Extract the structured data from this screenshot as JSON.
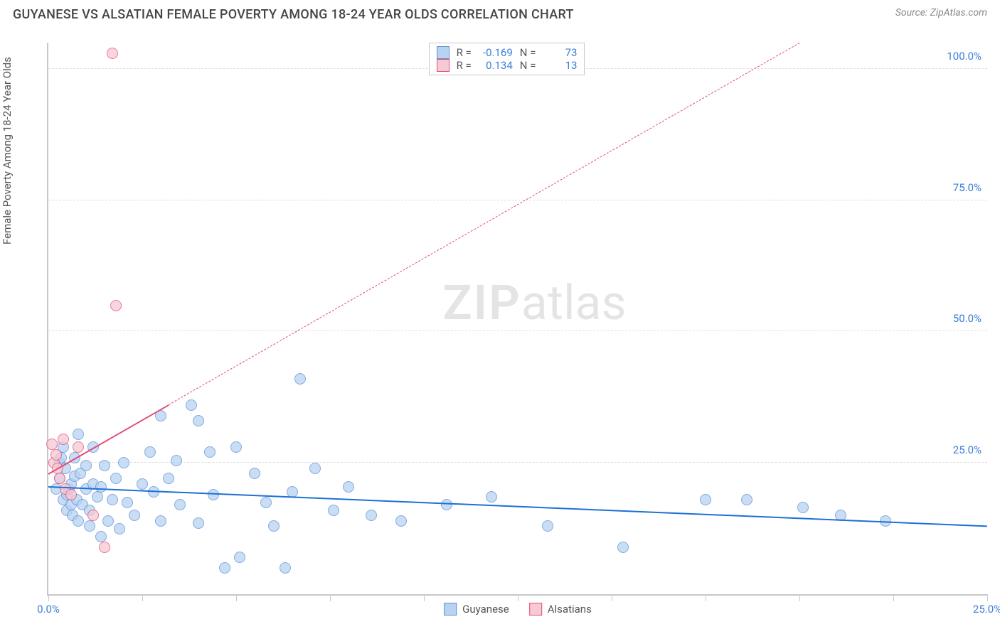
{
  "title": "GUYANESE VS ALSATIAN FEMALE POVERTY AMONG 18-24 YEAR OLDS CORRELATION CHART",
  "source_label": "Source: ZipAtlas.com",
  "yaxis_title": "Female Poverty Among 18-24 Year Olds",
  "watermark_zip": "ZIP",
  "watermark_rest": "atlas",
  "chart": {
    "type": "scatter",
    "xlim": [
      0,
      25
    ],
    "ylim": [
      0,
      105
    ],
    "xticks": [
      0,
      2.5,
      5,
      7.5,
      10,
      12.5,
      15,
      17.5,
      20,
      22.5,
      25
    ],
    "xtick_labels_shown": {
      "0": "0.0%",
      "25": "25.0%"
    },
    "yticks": [
      25,
      50,
      75,
      100
    ],
    "ytick_labels": {
      "25": "25.0%",
      "50": "50.0%",
      "75": "75.0%",
      "100": "100.0%"
    },
    "grid_color": "#dcdcdc",
    "axis_color": "#c8c8c8",
    "background_color": "#ffffff",
    "series": [
      {
        "name": "Guyanese",
        "marker_fill": "#b8d2f2",
        "marker_stroke": "#5b8fd6",
        "marker_opacity": 0.75,
        "marker_radius": 8,
        "reg_color": "#1f6fd4",
        "reg_from": [
          0,
          20.5
        ],
        "reg_to": [
          25,
          13
        ],
        "reg_dash_after_x": null,
        "R": "-0.169",
        "N": "73",
        "points": [
          [
            0.2,
            20
          ],
          [
            0.3,
            25
          ],
          [
            0.3,
            22
          ],
          [
            0.35,
            26
          ],
          [
            0.4,
            28
          ],
          [
            0.4,
            18
          ],
          [
            0.45,
            24
          ],
          [
            0.5,
            19
          ],
          [
            0.5,
            16
          ],
          [
            0.55,
            20
          ],
          [
            0.6,
            17
          ],
          [
            0.6,
            21
          ],
          [
            0.65,
            15
          ],
          [
            0.7,
            22.5
          ],
          [
            0.7,
            26
          ],
          [
            0.75,
            18
          ],
          [
            0.8,
            30.5
          ],
          [
            0.8,
            14
          ],
          [
            0.85,
            23
          ],
          [
            0.9,
            17
          ],
          [
            1.0,
            20
          ],
          [
            1.0,
            24.5
          ],
          [
            1.1,
            16
          ],
          [
            1.1,
            13
          ],
          [
            1.2,
            21
          ],
          [
            1.2,
            28
          ],
          [
            1.3,
            18.5
          ],
          [
            1.4,
            11
          ],
          [
            1.4,
            20.5
          ],
          [
            1.5,
            24.5
          ],
          [
            1.6,
            14
          ],
          [
            1.7,
            18
          ],
          [
            1.8,
            22
          ],
          [
            1.9,
            12.5
          ],
          [
            2.0,
            25
          ],
          [
            2.1,
            17.5
          ],
          [
            2.3,
            15
          ],
          [
            2.5,
            21
          ],
          [
            2.7,
            27
          ],
          [
            2.8,
            19.5
          ],
          [
            3.0,
            34
          ],
          [
            3.0,
            14
          ],
          [
            3.2,
            22
          ],
          [
            3.4,
            25.5
          ],
          [
            3.5,
            17
          ],
          [
            3.8,
            36
          ],
          [
            4.0,
            33
          ],
          [
            4.0,
            13.5
          ],
          [
            4.3,
            27
          ],
          [
            4.4,
            19
          ],
          [
            4.7,
            5
          ],
          [
            5.0,
            28
          ],
          [
            5.1,
            7
          ],
          [
            5.5,
            23
          ],
          [
            5.8,
            17.5
          ],
          [
            6.0,
            13
          ],
          [
            6.3,
            5
          ],
          [
            6.5,
            19.5
          ],
          [
            6.7,
            41
          ],
          [
            7.1,
            24
          ],
          [
            7.6,
            16
          ],
          [
            8.0,
            20.5
          ],
          [
            8.6,
            15
          ],
          [
            9.4,
            14
          ],
          [
            10.6,
            17
          ],
          [
            11.8,
            18.5
          ],
          [
            13.3,
            13
          ],
          [
            15.3,
            9
          ],
          [
            17.5,
            18
          ],
          [
            18.6,
            18
          ],
          [
            20.1,
            16.5
          ],
          [
            21.1,
            15
          ],
          [
            22.3,
            14
          ]
        ]
      },
      {
        "name": "Alsatians",
        "marker_fill": "#f7c9d4",
        "marker_stroke": "#e24d75",
        "marker_opacity": 0.75,
        "marker_radius": 8,
        "reg_color": "#e24d75",
        "reg_from": [
          0,
          23
        ],
        "reg_to": [
          20,
          105
        ],
        "reg_dash_after_x": 3.2,
        "R": "0.134",
        "N": "13",
        "points": [
          [
            0.1,
            28.5
          ],
          [
            0.15,
            25
          ],
          [
            0.2,
            26.5
          ],
          [
            0.25,
            24
          ],
          [
            0.3,
            22
          ],
          [
            0.4,
            29.5
          ],
          [
            0.45,
            20
          ],
          [
            0.6,
            19
          ],
          [
            0.8,
            28
          ],
          [
            1.2,
            15
          ],
          [
            1.5,
            9
          ],
          [
            1.8,
            55
          ],
          [
            1.7,
            103
          ]
        ]
      }
    ],
    "stats_box": {
      "left_pct": 40.5,
      "top_pct": 0
    },
    "legend_labels": {
      "s1": "Guyanese",
      "s2": "Alsatians"
    },
    "label_R": "R =",
    "label_N": "N ="
  }
}
